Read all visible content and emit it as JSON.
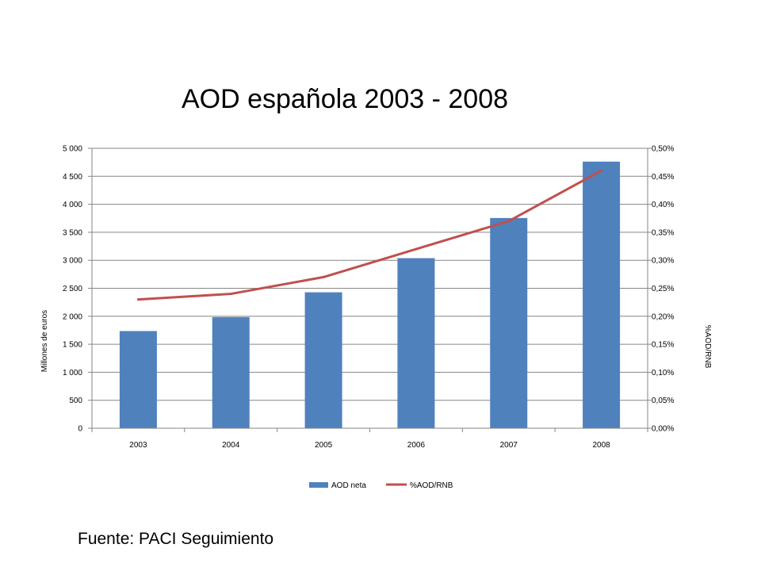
{
  "chart_data": {
    "type": "bar+line",
    "title": "AOD española 2003 - 2008",
    "categories": [
      "2003",
      "2004",
      "2005",
      "2006",
      "2007",
      "2008"
    ],
    "series": [
      {
        "name": "AOD neta",
        "type": "bar",
        "axis": "left",
        "color": "#4F81BD",
        "values": [
          1736,
          1985,
          2428,
          3038,
          3755,
          4762
        ]
      },
      {
        "name": "%AOD/RNB",
        "type": "line",
        "axis": "right",
        "color": "#C0504D",
        "values": [
          0.23,
          0.24,
          0.27,
          0.32,
          0.37,
          0.46
        ]
      }
    ],
    "ylabel": "Millones de euros",
    "y2label": "%AOD/RNB",
    "ylim": [
      0,
      5000
    ],
    "y2lim": [
      0,
      0.5
    ],
    "yticks": [
      "0",
      "500",
      "1 000",
      "1 500",
      "2 000",
      "2 500",
      "3 000",
      "3 500",
      "4 000",
      "4 500",
      "5 000"
    ],
    "y2ticks": [
      "0,00%",
      "0,05%",
      "0,10%",
      "0,15%",
      "0,20%",
      "0,25%",
      "0,30%",
      "0,35%",
      "0,40%",
      "0,45%",
      "0,50%"
    ],
    "grid": true,
    "legend": "bottom"
  },
  "source_text": "Fuente: PACI Seguimiento"
}
